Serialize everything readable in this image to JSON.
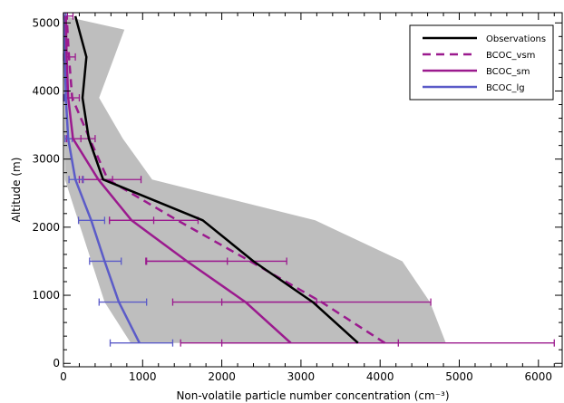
{
  "chart_data": {
    "type": "line",
    "xlabel": "Non-volatile particle number concentration (cm⁻³)",
    "ylabel": "Altitude (m)",
    "xlim": [
      0,
      6300
    ],
    "ylim": [
      -50,
      5150
    ],
    "x_ticks": [
      "0",
      "1000",
      "2000",
      "3000",
      "4000",
      "5000",
      "6000"
    ],
    "y_ticks": [
      "0",
      "1000",
      "2000",
      "3000",
      "4000",
      "5000"
    ],
    "x_tick_values": [
      0,
      1000,
      2000,
      3000,
      4000,
      5000,
      6000
    ],
    "y_tick_values": [
      0,
      1000,
      2000,
      3000,
      4000,
      5000
    ],
    "grid": false,
    "legend_position": "top-right",
    "shaded_range": {
      "color": "#bebebe",
      "left": [
        [
          0,
          5100
        ],
        [
          20,
          4300
        ],
        [
          10,
          3400
        ],
        [
          20,
          2700
        ],
        [
          130,
          2300
        ],
        [
          520,
          900
        ],
        [
          850,
          300
        ]
      ],
      "right": [
        [
          770,
          4900
        ],
        [
          450,
          3900
        ],
        [
          750,
          3300
        ],
        [
          1120,
          2700
        ],
        [
          3180,
          2100
        ],
        [
          4280,
          1500
        ],
        [
          4630,
          900
        ],
        [
          4830,
          300
        ]
      ]
    },
    "series": [
      {
        "name": "Observations",
        "color": "#000000",
        "dash": "solid",
        "points": [
          [
            3720,
            300
          ],
          [
            3150,
            900
          ],
          [
            2400,
            1500
          ],
          [
            1760,
            2100
          ],
          [
            500,
            2700
          ],
          [
            320,
            3300
          ],
          [
            240,
            3900
          ],
          [
            290,
            4500
          ],
          [
            150,
            5100
          ]
        ]
      },
      {
        "name": "BCOC_vsm",
        "color": "#9b1a8e",
        "dash": "dashed",
        "points": [
          [
            4060,
            300
          ],
          [
            3260,
            900
          ],
          [
            2360,
            1500
          ],
          [
            1440,
            2100
          ],
          [
            560,
            2700
          ],
          [
            330,
            3300
          ],
          [
            110,
            3900
          ],
          [
            70,
            4500
          ],
          [
            40,
            5100
          ]
        ],
        "errors": [
          [
            2000,
            6200
          ],
          [
            2000,
            4640
          ],
          [
            1040,
            2820
          ],
          [
            580,
            1700
          ],
          [
            200,
            980
          ],
          [
            60,
            400
          ],
          [
            0,
            200
          ],
          [
            0,
            150
          ],
          [
            0,
            120
          ]
        ]
      },
      {
        "name": "BCOC_sm",
        "color": "#9b1a8e",
        "dash": "solid",
        "points": [
          [
            2870,
            300
          ],
          [
            2300,
            900
          ],
          [
            1560,
            1500
          ],
          [
            860,
            2100
          ],
          [
            440,
            2700
          ],
          [
            120,
            3300
          ],
          [
            60,
            3900
          ],
          [
            40,
            4500
          ],
          [
            30,
            5100
          ]
        ],
        "errors": [
          [
            1480,
            4230
          ],
          [
            1380,
            3200
          ],
          [
            1050,
            2070
          ],
          [
            580,
            1140
          ],
          [
            240,
            620
          ],
          [
            40,
            220
          ],
          [
            10,
            110
          ],
          [
            10,
            70
          ],
          [
            10,
            50
          ]
        ]
      },
      {
        "name": "BCOC_lg",
        "color": "#5b5bc8",
        "dash": "solid",
        "points": [
          [
            960,
            300
          ],
          [
            700,
            900
          ],
          [
            520,
            1500
          ],
          [
            350,
            2100
          ],
          [
            150,
            2700
          ],
          [
            60,
            3300
          ],
          [
            30,
            3900
          ],
          [
            20,
            4500
          ],
          [
            10,
            5100
          ]
        ],
        "errors": [
          [
            590,
            1380
          ],
          [
            450,
            1050
          ],
          [
            330,
            730
          ],
          [
            190,
            520
          ],
          [
            70,
            250
          ],
          [
            20,
            110
          ],
          [
            10,
            60
          ],
          [
            5,
            40
          ],
          [
            5,
            30
          ]
        ]
      }
    ]
  }
}
